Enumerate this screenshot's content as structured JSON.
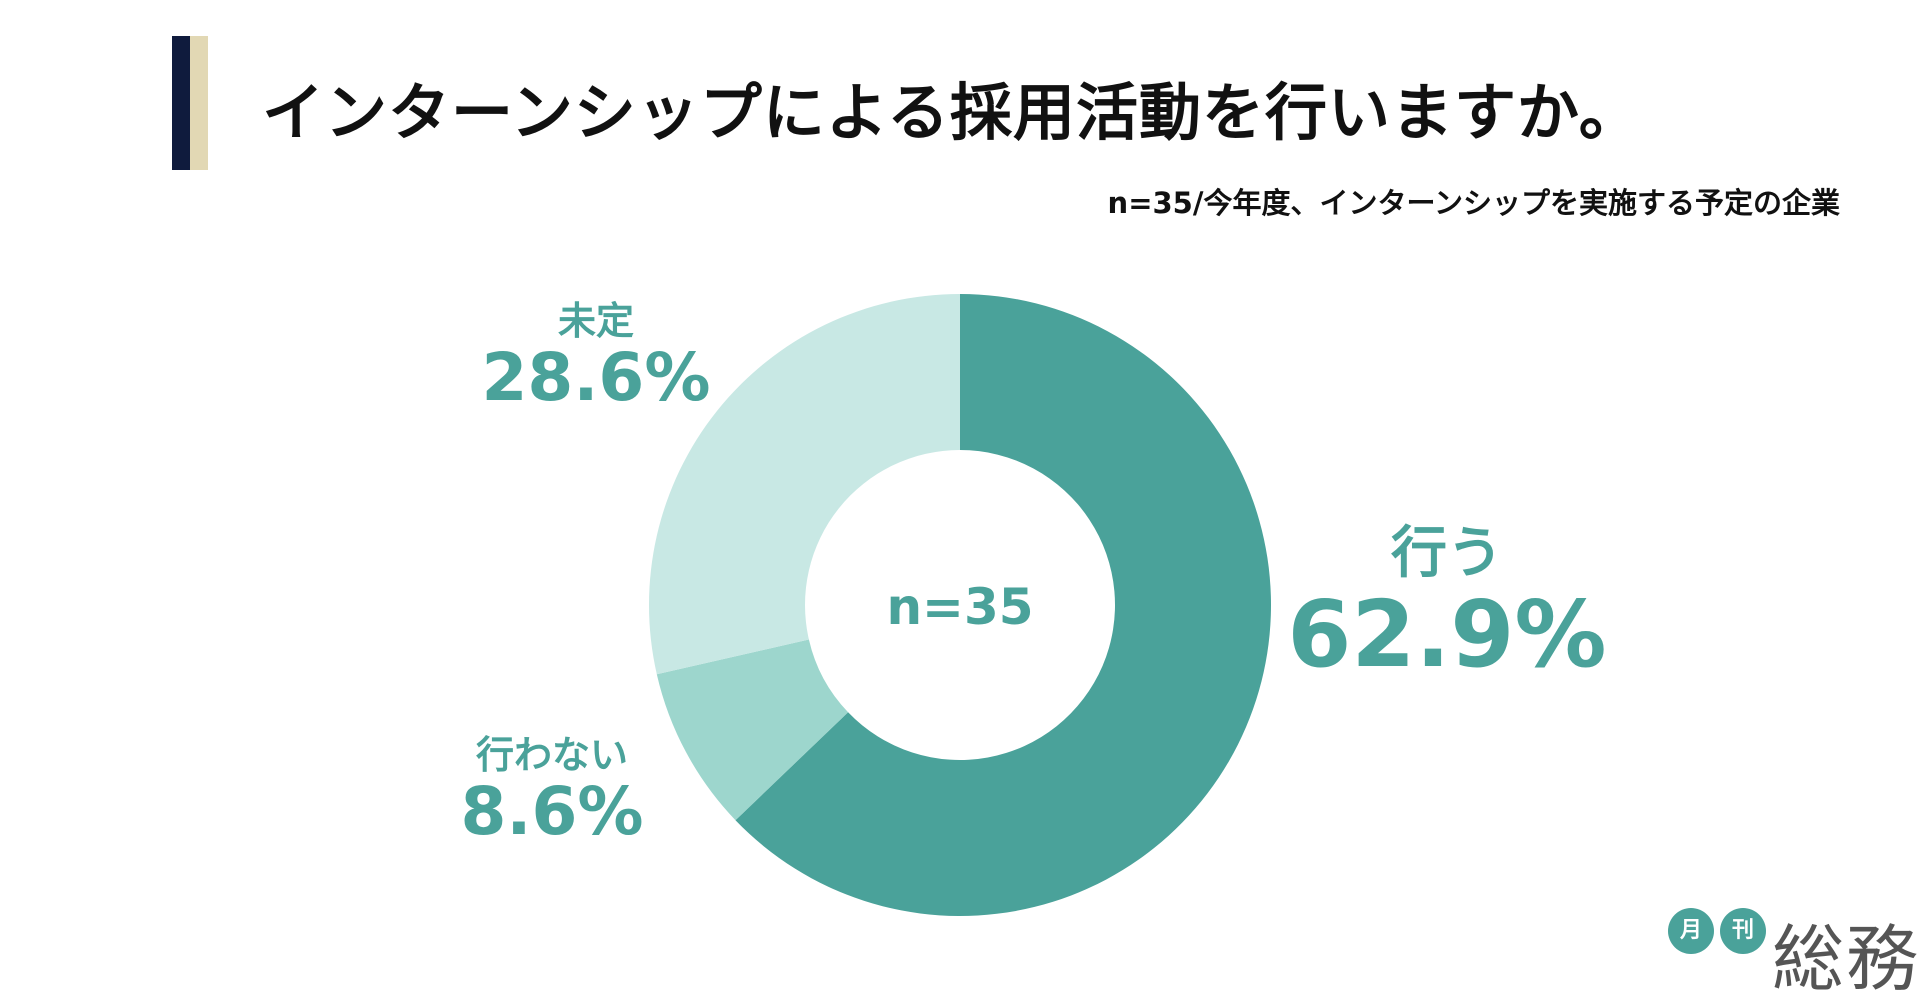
{
  "title": "インターンシップによる採用活動を行いますか。",
  "subtitle": "n=35/今年度、インターンシップを実施する予定の企業",
  "center_label": "n=35",
  "colors": {
    "accent_dark": "#0f1b3d",
    "accent_light": "#e2d8b4",
    "label_text": "#4aa29a"
  },
  "chart_data": {
    "type": "pie",
    "style": "donut",
    "categories": [
      "行う",
      "行わない",
      "未定"
    ],
    "values": [
      62.9,
      8.6,
      28.6
    ],
    "percent_labels": [
      "62.9%",
      "8.6%",
      "28.6%"
    ],
    "colors": [
      "#4aa29a",
      "#9dd6cd",
      "#c8e8e4"
    ],
    "start": "12 o'clock",
    "direction": "clockwise"
  },
  "logo": {
    "circle_1": "月",
    "circle_2": "刊",
    "main": "総務",
    "circle_color": "#4aa29a"
  }
}
